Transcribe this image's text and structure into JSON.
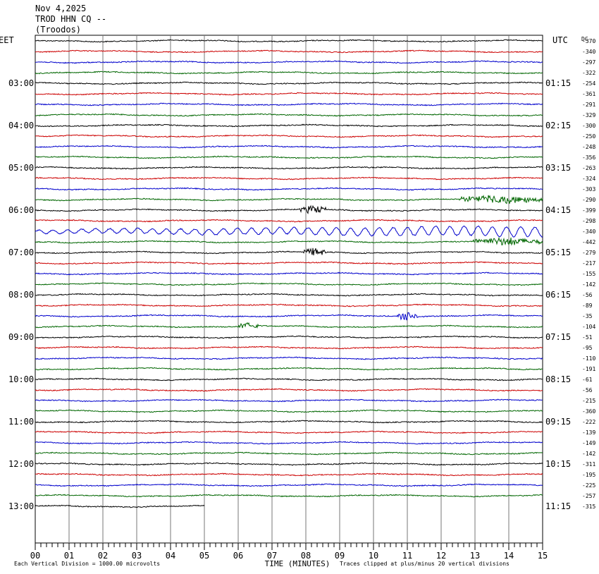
{
  "header": {
    "date": "Nov 4,2025",
    "station": "TROD HHN CQ --",
    "location": "(Troodos)"
  },
  "labels": {
    "left_zone": "EET",
    "right_zone": "UTC",
    "dc_label": "DC",
    "xlabel": "TIME (MINUTES)",
    "footer_left": "Each Vertical Division = 1000.00 microvolts",
    "footer_right": "Traces clipped at plus/minus 20 vertical divisions"
  },
  "chart_data": {
    "type": "line",
    "title": "Nov 4,2025 TROD HHN CQ -- (Troodos)",
    "xlabel": "TIME (MINUTES)",
    "xlim": [
      0,
      15
    ],
    "x_ticks": [
      "00",
      "01",
      "02",
      "03",
      "04",
      "05",
      "06",
      "07",
      "08",
      "09",
      "10",
      "11",
      "12",
      "13",
      "14",
      "15"
    ],
    "left_time_labels": [
      "03:00",
      "04:00",
      "05:00",
      "06:00",
      "07:00",
      "08:00",
      "09:00",
      "10:00",
      "11:00",
      "12:00",
      "13:00"
    ],
    "right_time_labels": [
      "01:15",
      "02:15",
      "03:15",
      "04:15",
      "05:15",
      "06:15",
      "07:15",
      "08:15",
      "09:15",
      "10:15",
      "11:15"
    ],
    "dc_offsets": [
      -370,
      -340,
      -297,
      -322,
      -254,
      -361,
      -291,
      -329,
      -300,
      -250,
      -248,
      -356,
      -263,
      -324,
      -303,
      -290,
      -399,
      -298,
      -340,
      -442,
      -279,
      -217,
      -155,
      -142,
      -56,
      -89,
      -35,
      -104,
      -51,
      -95,
      -110,
      -191,
      -61,
      -56,
      -215,
      -360,
      -222,
      -139,
      -149,
      -142,
      -311,
      -195,
      -225,
      -257,
      -315
    ],
    "trace_colors": [
      "#000000",
      "#cc0000",
      "#0000cc",
      "#006600"
    ],
    "traces_count": 45,
    "last_trace_end_minute": 5.0,
    "events": [
      {
        "trace": 15,
        "start_min": 12.5,
        "end_min": 15,
        "note": "green noise burst"
      },
      {
        "trace": 16,
        "start_min": 7.8,
        "end_min": 8.6,
        "note": "black burst"
      },
      {
        "trace": 18,
        "start_min": 0,
        "end_min": 15,
        "note": "blue oscillation"
      },
      {
        "trace": 19,
        "start_min": 12.9,
        "end_min": 15,
        "note": "green burst"
      },
      {
        "trace": 20,
        "start_min": 7.9,
        "end_min": 8.6,
        "note": "black burst"
      },
      {
        "trace": 26,
        "start_min": 10.7,
        "end_min": 11.3,
        "note": "blue burst"
      },
      {
        "trace": 27,
        "start_min": 6.0,
        "end_min": 6.6,
        "note": "green burst"
      }
    ],
    "grid": true
  }
}
